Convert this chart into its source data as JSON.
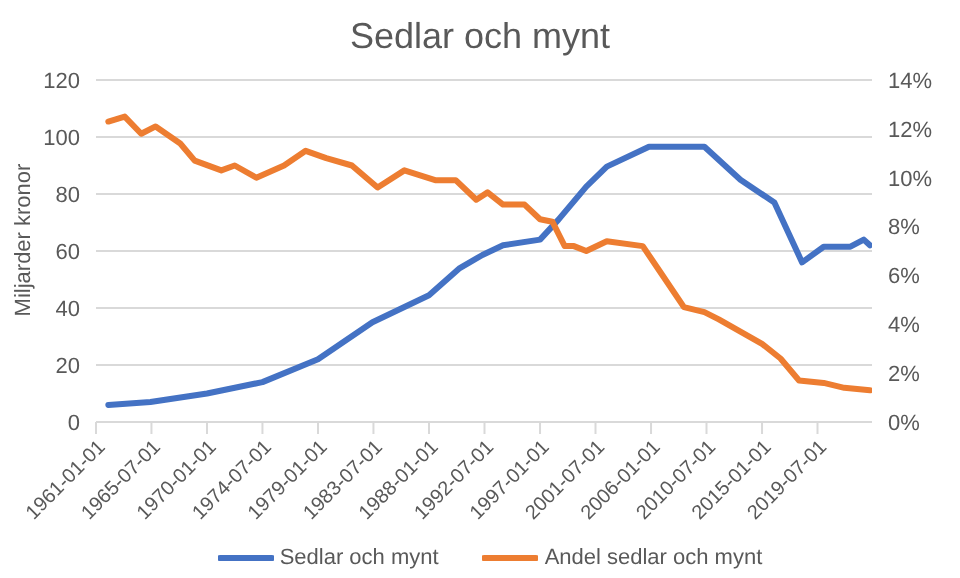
{
  "chart_data": {
    "type": "line",
    "title": "Sedlar och mynt",
    "ylabel": "Miljarder kronor",
    "xlim": [
      "1961-01-01",
      "2023-12-01"
    ],
    "xticks": [
      "1961-01-01",
      "1965-07-01",
      "1970-01-01",
      "1974-07-01",
      "1979-01-01",
      "1983-07-01",
      "1988-01-01",
      "1992-07-01",
      "1997-01-01",
      "2001-07-01",
      "2006-01-01",
      "2010-07-01",
      "2015-01-01",
      "2019-07-01"
    ],
    "ylim": [
      0,
      120
    ],
    "yticks": [
      0,
      20,
      40,
      60,
      80,
      100,
      120
    ],
    "y2lim": [
      0,
      14
    ],
    "y2ticks": [
      {
        "value": 0,
        "label": "0%"
      },
      {
        "value": 2,
        "label": "2%"
      },
      {
        "value": 4,
        "label": "4%"
      },
      {
        "value": 6,
        "label": "6%"
      },
      {
        "value": 8,
        "label": "8%"
      },
      {
        "value": 10,
        "label": "10%"
      },
      {
        "value": 12,
        "label": "12%"
      },
      {
        "value": 14,
        "label": "14%"
      }
    ],
    "grid": "y",
    "legend": "bottom",
    "marker": "none",
    "line_style": "solid",
    "series": [
      {
        "name": "Sedlar och mynt",
        "color": "#4472c4",
        "x": [
          "1962-01",
          "1965-06",
          "1970-01",
          "1974-07",
          "1979-01",
          "1983-06",
          "1988-01",
          "1990-07",
          "1992-05",
          "1994-01",
          "1997-01",
          "1998-07",
          "2000-10",
          "2002-06",
          "2005-11",
          "2010-05",
          "2013-04",
          "2016-01",
          "2018-04",
          "2020-01",
          "2022-03",
          "2023-04",
          "2023-10"
        ],
        "values": [
          6,
          7,
          10,
          14,
          22,
          35,
          44.5,
          54,
          58.6,
          62,
          64,
          71,
          82.6,
          89.6,
          96.6,
          96.6,
          85,
          77,
          56,
          61.5,
          61.5,
          64,
          62
        ]
      },
      {
        "name": "Andel sedlar och mynt",
        "color": "#ed7d31",
        "axis": "y2",
        "x": [
          "1962-01",
          "1963-05",
          "1964-09",
          "1965-11",
          "1967-11",
          "1969-01",
          "1971-03",
          "1972-04",
          "1974-01",
          "1976-04",
          "1978-01",
          "1979-09",
          "1981-10",
          "1983-11",
          "1986-01",
          "1988-07",
          "1990-03",
          "1991-11",
          "1992-10",
          "1994-01",
          "1995-10",
          "1997-01",
          "1998-01",
          "1999-01",
          "1999-10",
          "2000-10",
          "2002-06",
          "2005-05",
          "2006-09",
          "2008-09",
          "2010-05",
          "2011-07",
          "2013-04",
          "2015-01",
          "2016-07",
          "2018-01",
          "2020-01",
          "2021-09",
          "2023-10"
        ],
        "values": [
          12.3,
          12.5,
          11.8,
          12.1,
          11.4,
          10.7,
          10.3,
          10.5,
          10.0,
          10.5,
          11.1,
          10.8,
          10.5,
          9.6,
          10.3,
          9.9,
          9.9,
          9.1,
          9.4,
          8.9,
          8.9,
          8.3,
          8.2,
          7.2,
          7.2,
          7.0,
          7.4,
          7.2,
          6.2,
          4.7,
          4.5,
          4.2,
          3.7,
          3.2,
          2.6,
          1.7,
          1.6,
          1.4,
          1.3
        ]
      }
    ]
  }
}
